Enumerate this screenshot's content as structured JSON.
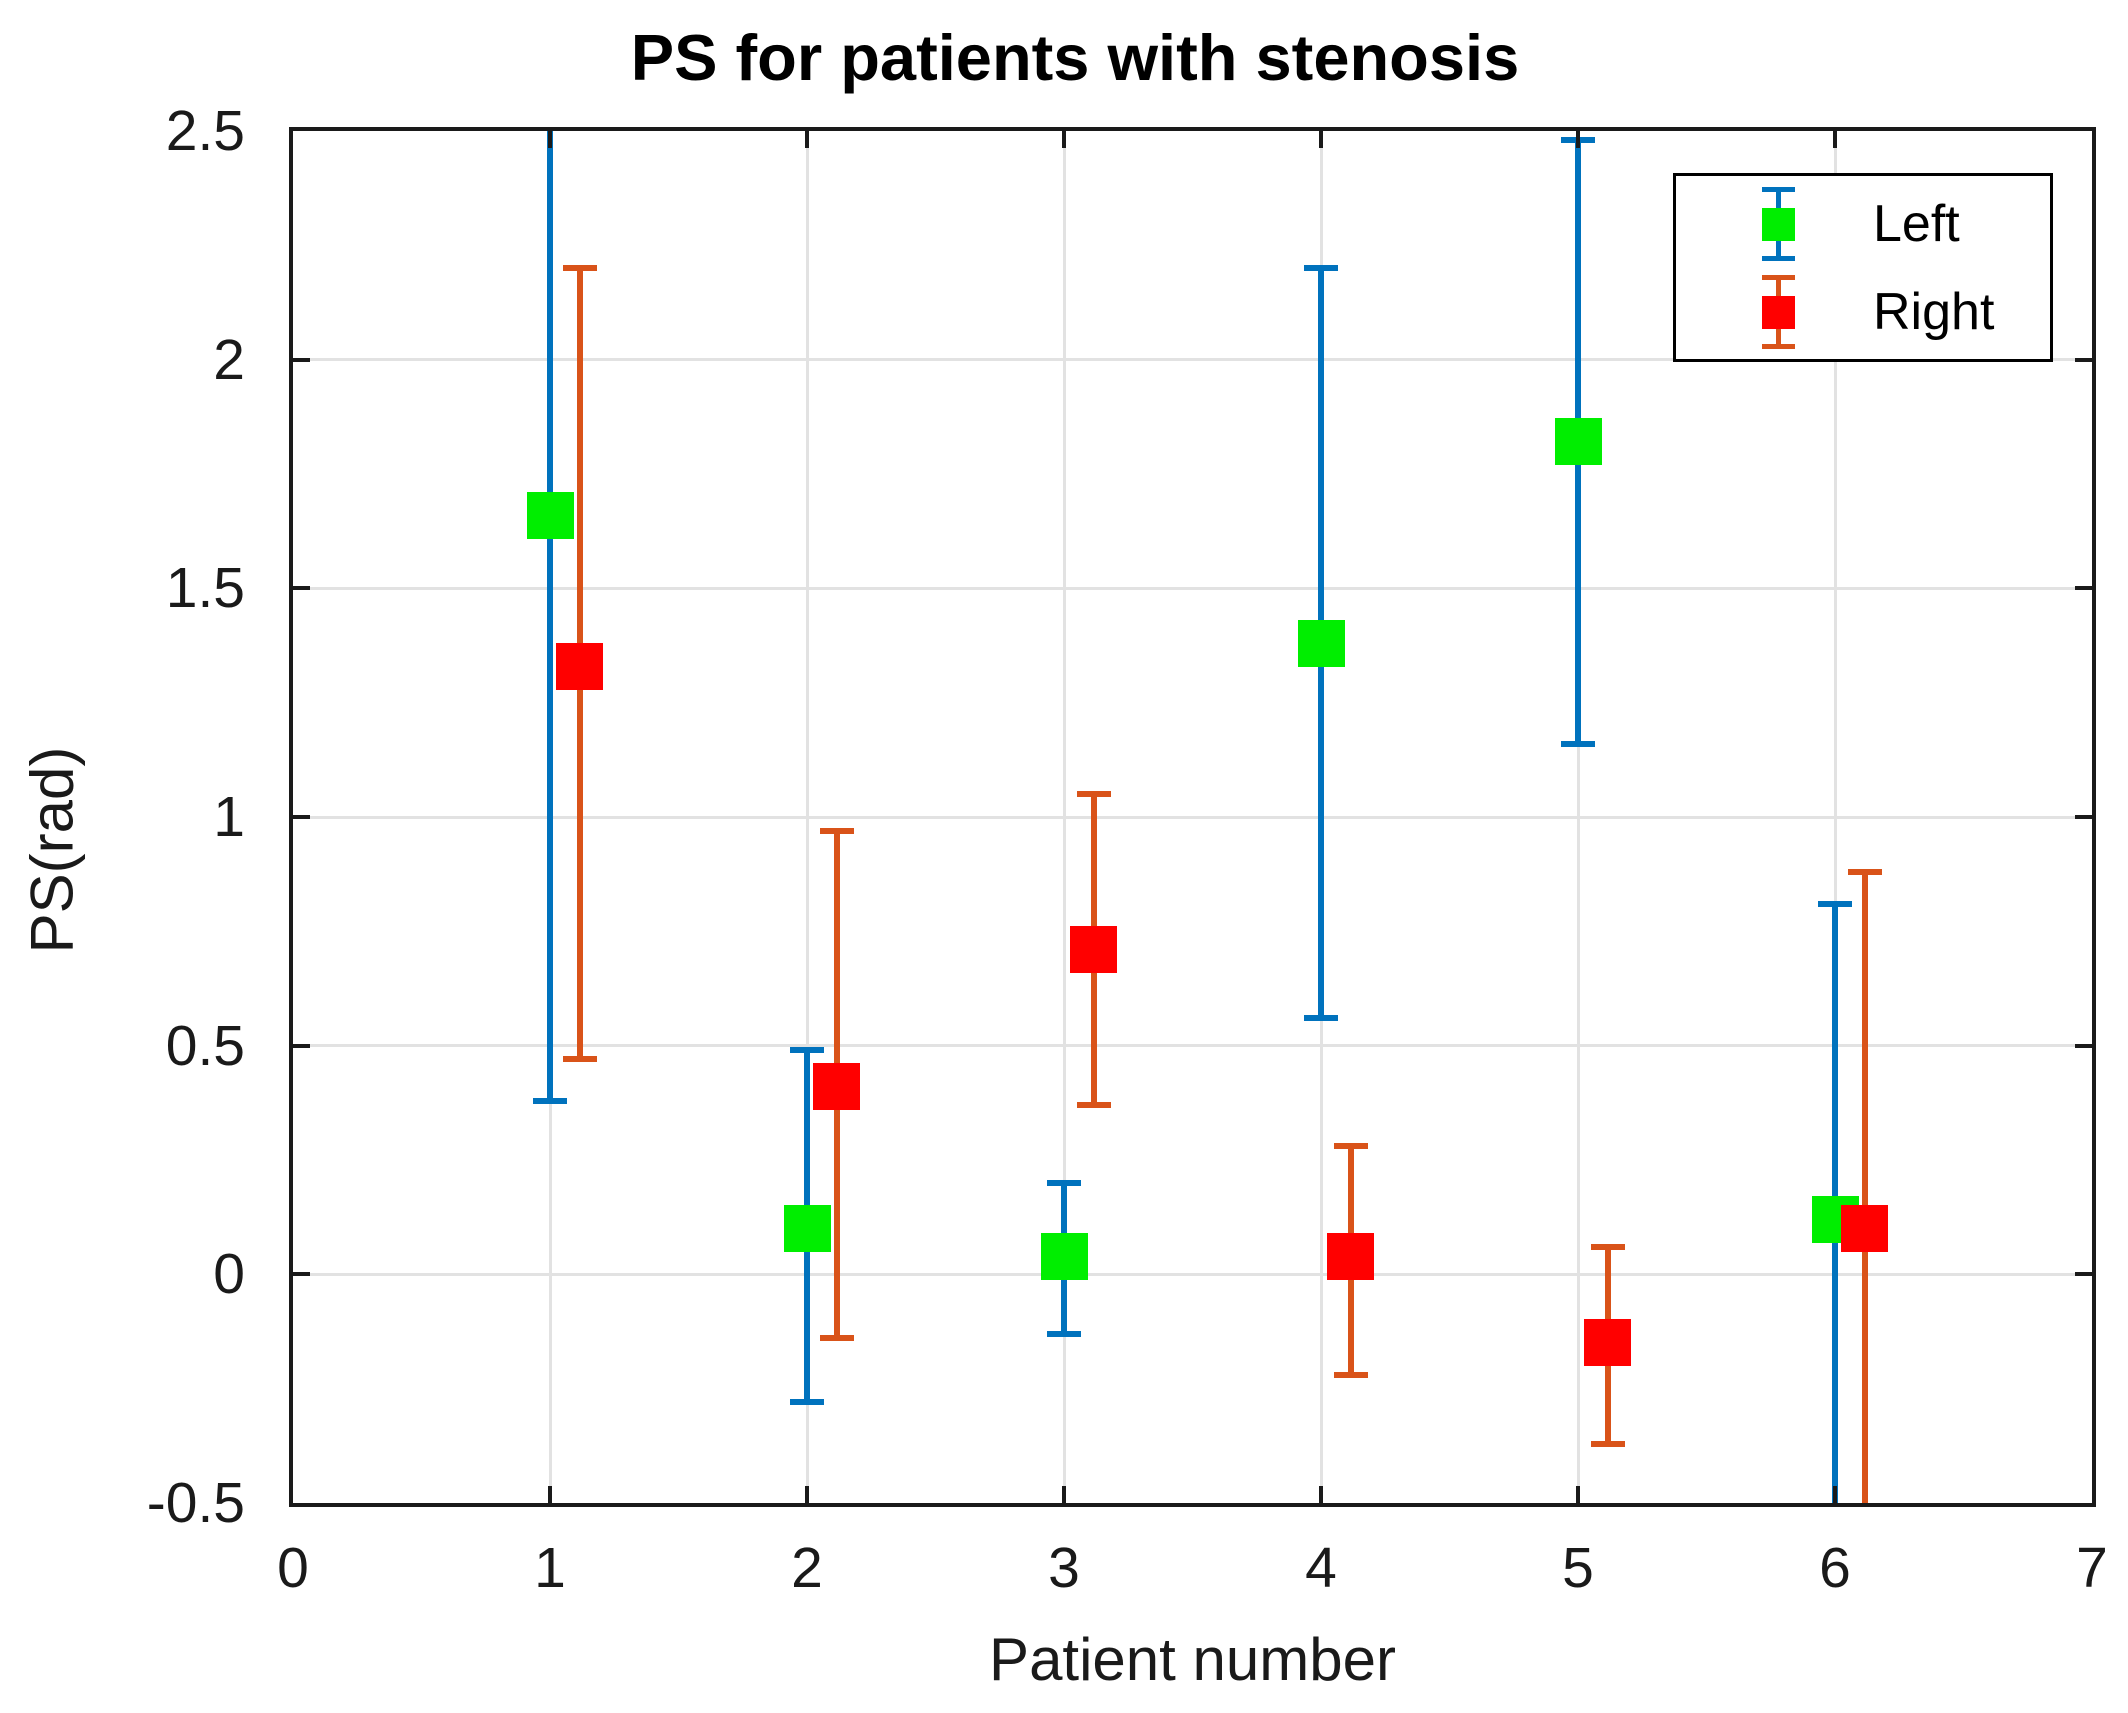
{
  "title": "PS for patients with stenosis",
  "chart_data": {
    "type": "scatter",
    "subtype": "errorbar",
    "title": "PS for patients with stenosis",
    "xlabel": "Patient number",
    "ylabel": "PS(rad)",
    "xlim": [
      0,
      7
    ],
    "ylim": [
      -0.5,
      2.5
    ],
    "x_ticks": [
      0,
      1,
      2,
      3,
      4,
      5,
      6,
      7
    ],
    "x_tick_labels": [
      "0",
      "1",
      "2",
      "3",
      "4",
      "5",
      "6",
      "7"
    ],
    "y_ticks": [
      -0.5,
      0,
      0.5,
      1,
      1.5,
      2,
      2.5
    ],
    "y_tick_labels": [
      "-0.5",
      "0",
      "0.5",
      "1",
      "1.5",
      "2",
      "2.5"
    ],
    "grid": true,
    "legend_position": "top-right",
    "legend": [
      "Left",
      "Right"
    ],
    "note": "Square markers with vertical error bars; bars whose lo/hi values lie beyond the y-axis limits are clipped at the plot edge (patient 1 Left upper bar, patient 6 both lower bars)",
    "series": [
      {
        "name": "Left",
        "marker": "square",
        "marker_color": "#00ee00",
        "bar_color": "#0072bd",
        "x_offset": 0,
        "points": [
          {
            "x": 1,
            "y": 1.66,
            "lo": 0.38,
            "hi": 2.62
          },
          {
            "x": 2,
            "y": 0.1,
            "lo": -0.28,
            "hi": 0.49
          },
          {
            "x": 3,
            "y": 0.04,
            "lo": -0.13,
            "hi": 0.2
          },
          {
            "x": 4,
            "y": 1.38,
            "lo": 0.56,
            "hi": 2.2
          },
          {
            "x": 5,
            "y": 1.82,
            "lo": 1.16,
            "hi": 2.48
          },
          {
            "x": 6,
            "y": 0.12,
            "lo": -0.62,
            "hi": 0.81
          }
        ]
      },
      {
        "name": "Right",
        "marker": "square",
        "marker_color": "#ff0000",
        "bar_color": "#d95319",
        "x_offset": 0.115,
        "points": [
          {
            "x": 1,
            "y": 1.33,
            "lo": 0.47,
            "hi": 2.2
          },
          {
            "x": 2,
            "y": 0.41,
            "lo": -0.14,
            "hi": 0.97
          },
          {
            "x": 3,
            "y": 0.71,
            "lo": 0.37,
            "hi": 1.05
          },
          {
            "x": 4,
            "y": 0.04,
            "lo": -0.22,
            "hi": 0.28
          },
          {
            "x": 5,
            "y": -0.15,
            "lo": -0.37,
            "hi": 0.06
          },
          {
            "x": 6,
            "y": 0.1,
            "lo": -0.62,
            "hi": 0.88
          }
        ]
      }
    ]
  },
  "colors": {
    "grid": "#e2e2e2",
    "axis": "#1a1a1a",
    "background": "#ffffff",
    "left_marker": "#00ee00",
    "left_bar": "#0072bd",
    "right_marker": "#ff0000",
    "right_bar": "#d95319"
  }
}
